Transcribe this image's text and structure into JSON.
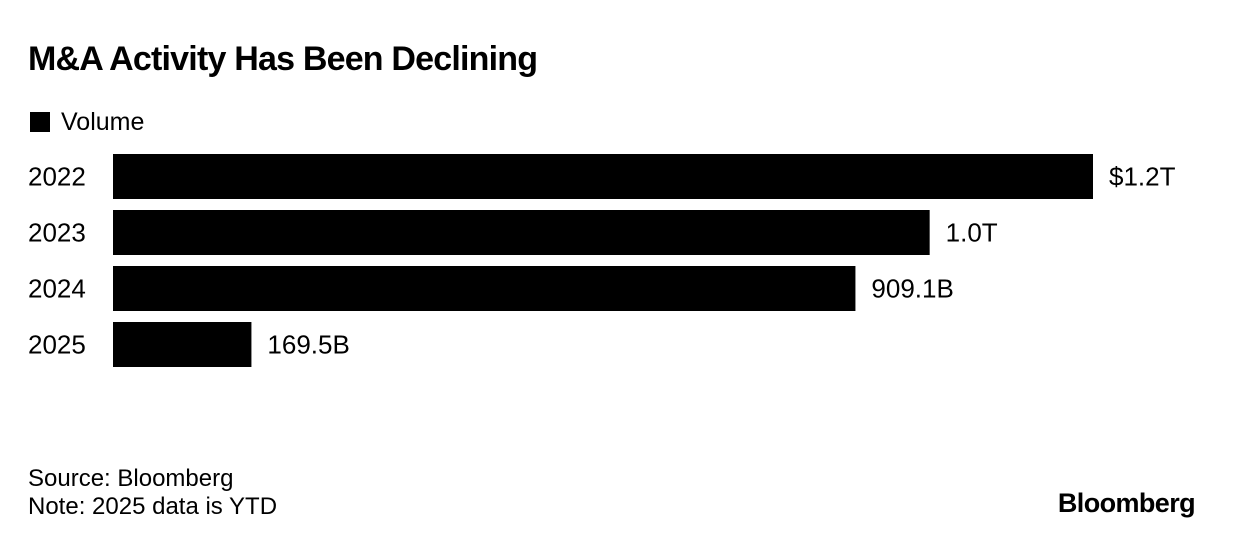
{
  "chart_data": {
    "type": "bar",
    "orientation": "horizontal",
    "title": "M&A Activity Has Been Declining",
    "legend": [
      "Volume"
    ],
    "legend_position": "top-left",
    "categories": [
      "2022",
      "2023",
      "2024",
      "2025"
    ],
    "series": [
      {
        "name": "Volume",
        "values": [
          1200,
          1000,
          909.1,
          169.5
        ],
        "unit": "billion USD",
        "data_labels": [
          "$1.2T",
          "1.0T",
          "909.1B",
          "169.5B"
        ]
      }
    ],
    "xlim": [
      0,
      1200
    ],
    "grid": false,
    "axes_visible": false,
    "colors": {
      "bar": "#000000"
    }
  },
  "footer": {
    "source": "Source: Bloomberg",
    "note": "Note: 2025 data is YTD"
  },
  "brand": "Bloomberg"
}
